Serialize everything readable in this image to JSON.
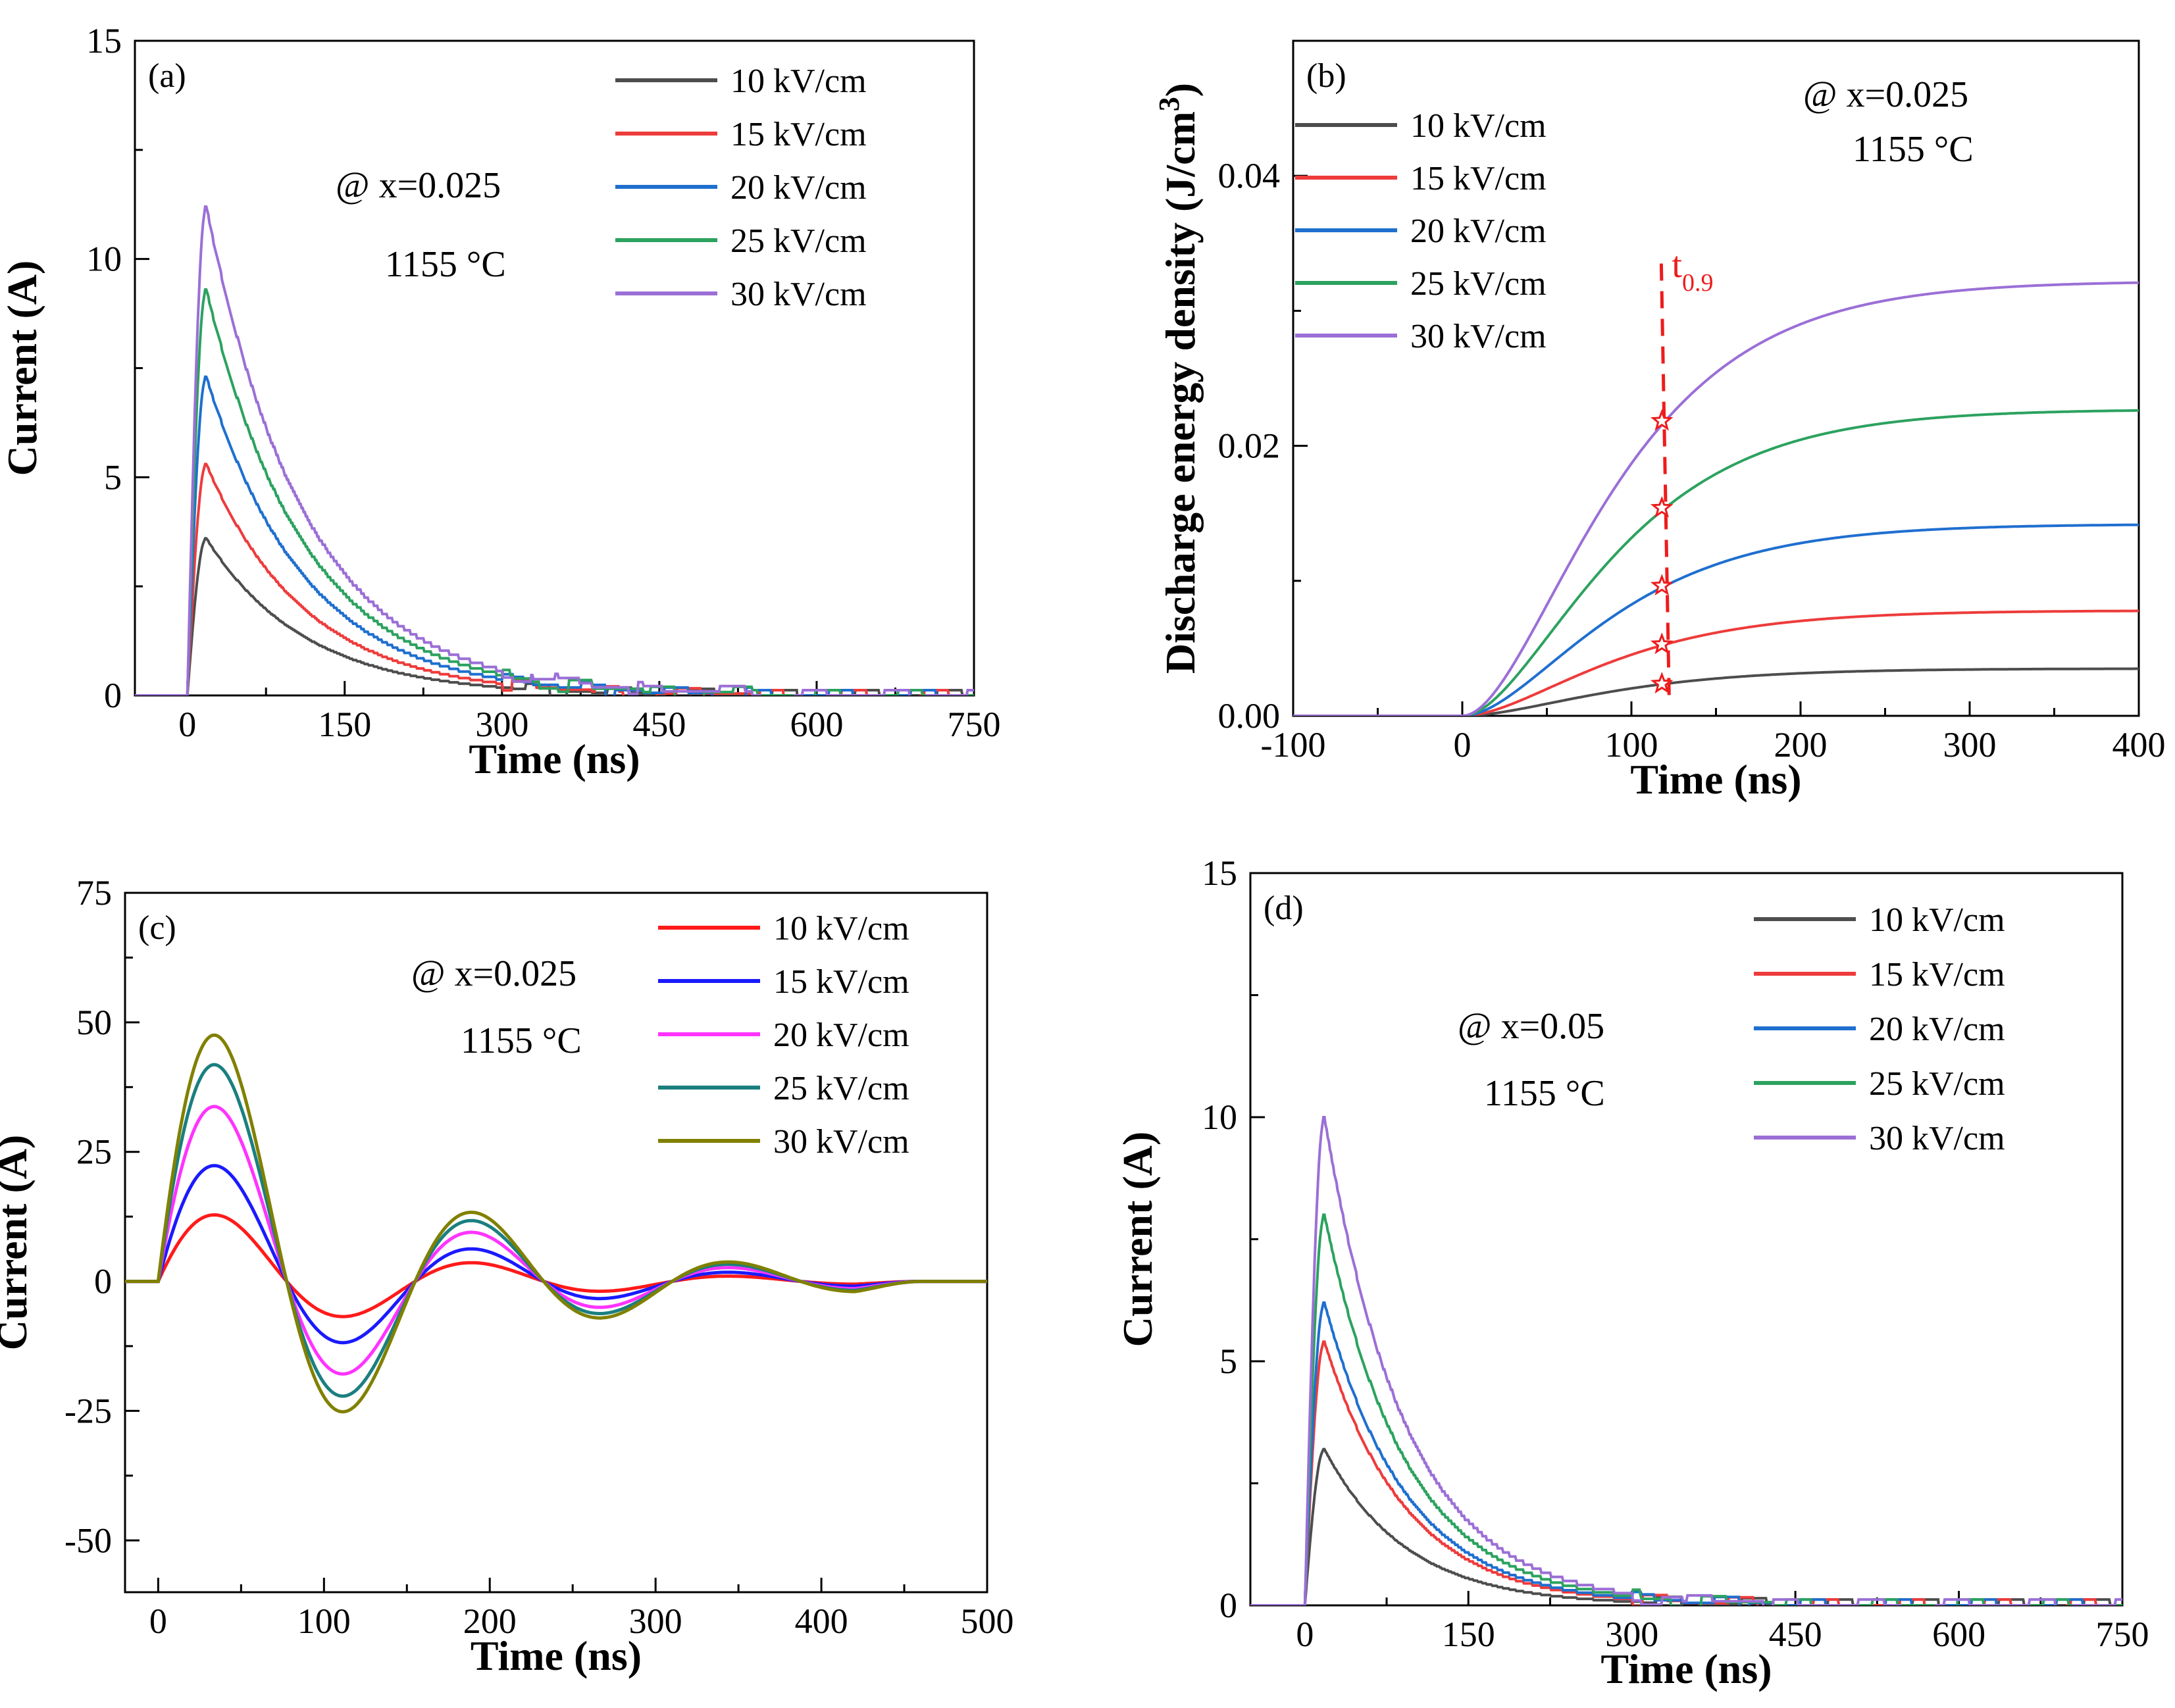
{
  "chart_data": [
    {
      "id": "a",
      "type": "line",
      "panel_label": "(a)",
      "xlabel": "Time (ns)",
      "ylabel": "Current (A)",
      "xlim": [
        -50,
        750
      ],
      "ylim": [
        0,
        15
      ],
      "xticks": [
        0,
        150,
        300,
        450,
        600,
        750
      ],
      "yticks": [
        0,
        5,
        10,
        15
      ],
      "annotation": [
        "@ x=0.025",
        "1155 °C"
      ],
      "legend_position": "top-right",
      "series": [
        {
          "name": "10 kV/cm",
          "color": "#4d4d4d",
          "peak": 3.6,
          "tau": 95,
          "tpeak": 18
        },
        {
          "name": "15 kV/cm",
          "color": "#ee3b3b",
          "peak": 5.3,
          "tau": 95,
          "tpeak": 18
        },
        {
          "name": "20 kV/cm",
          "color": "#1f6fcf",
          "peak": 7.3,
          "tau": 95,
          "tpeak": 18
        },
        {
          "name": "25 kV/cm",
          "color": "#2ca25f",
          "peak": 9.3,
          "tau": 95,
          "tpeak": 18
        },
        {
          "name": "30 kV/cm",
          "color": "#9b6fd6",
          "peak": 11.2,
          "tau": 95,
          "tpeak": 18
        }
      ]
    },
    {
      "id": "b",
      "type": "line",
      "panel_label": "(b)",
      "xlabel": "Time (ns)",
      "ylabel": "Discharge energy density (J/cm",
      "ylabel_sup": "3",
      "ylabel_close": ")",
      "xlim": [
        -100,
        400
      ],
      "ylim": [
        0,
        0.05
      ],
      "xticks": [
        -100,
        0,
        100,
        200,
        300,
        400
      ],
      "ytick_labels": [
        "0.00",
        "0.02",
        "0.04"
      ],
      "yticks": [
        0,
        0.02,
        0.04
      ],
      "annotation": [
        "@ x=0.025",
        "1155 °C"
      ],
      "marker_label": "t",
      "marker_sub": "0.9",
      "marker_time": 120,
      "legend_position": "top-left",
      "series": [
        {
          "name": "10 kV/cm",
          "color": "#4d4d4d",
          "final": 0.0035
        },
        {
          "name": "15 kV/cm",
          "color": "#ee3b3b",
          "final": 0.0078
        },
        {
          "name": "20 kV/cm",
          "color": "#1f6fcf",
          "final": 0.0142
        },
        {
          "name": "25 kV/cm",
          "color": "#2ca25f",
          "final": 0.0227
        },
        {
          "name": "30 kV/cm",
          "color": "#9b6fd6",
          "final": 0.0322
        }
      ]
    },
    {
      "id": "c",
      "type": "line",
      "panel_label": "(c)",
      "xlabel": "Time (ns)",
      "ylabel": "Current (A)",
      "xlim": [
        -20,
        500
      ],
      "ylim": [
        -60,
        75
      ],
      "xticks": [
        0,
        100,
        200,
        300,
        400,
        500
      ],
      "yticks": [
        -50,
        -25,
        0,
        25,
        50,
        75
      ],
      "annotation": [
        "@ x=0.025",
        "1155 °C"
      ],
      "legend_position": "top-right",
      "series": [
        {
          "name": "10 kV/cm",
          "color": "#ff1a1a",
          "amp": 13.5
        },
        {
          "name": "15 kV/cm",
          "color": "#1a1aff",
          "amp": 23.5
        },
        {
          "name": "20 kV/cm",
          "color": "#ff33ff",
          "amp": 35.5
        },
        {
          "name": "25 kV/cm",
          "color": "#1a7f7f",
          "amp": 44.0
        },
        {
          "name": "30 kV/cm",
          "color": "#808000",
          "amp": 50.0
        }
      ]
    },
    {
      "id": "d",
      "type": "line",
      "panel_label": "(d)",
      "xlabel": "Time (ns)",
      "ylabel": "Current (A)",
      "xlim": [
        -50,
        750
      ],
      "ylim": [
        0,
        15
      ],
      "xticks": [
        0,
        150,
        300,
        450,
        600,
        750
      ],
      "yticks": [
        0,
        5,
        10,
        15
      ],
      "annotation": [
        "@ x=0.05",
        "1155 °C"
      ],
      "legend_position": "top-right",
      "series": [
        {
          "name": "10 kV/cm",
          "color": "#4d4d4d",
          "peak": 3.2,
          "tau": 75,
          "tpeak": 18
        },
        {
          "name": "15 kV/cm",
          "color": "#ee3b3b",
          "peak": 5.4,
          "tau": 75,
          "tpeak": 18
        },
        {
          "name": "20 kV/cm",
          "color": "#1f6fcf",
          "peak": 6.2,
          "tau": 75,
          "tpeak": 18
        },
        {
          "name": "25 kV/cm",
          "color": "#2ca25f",
          "peak": 8.0,
          "tau": 75,
          "tpeak": 18
        },
        {
          "name": "30 kV/cm",
          "color": "#9b6fd6",
          "peak": 10.0,
          "tau": 75,
          "tpeak": 18
        }
      ]
    }
  ]
}
